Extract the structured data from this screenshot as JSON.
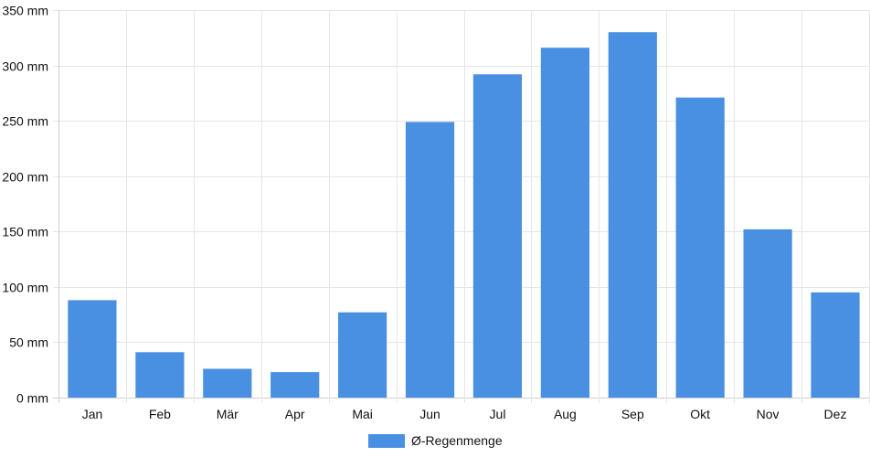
{
  "chart_data": {
    "type": "bar",
    "categories": [
      "Jan",
      "Feb",
      "Mär",
      "Apr",
      "Mai",
      "Jun",
      "Jul",
      "Aug",
      "Sep",
      "Okt",
      "Nov",
      "Dez"
    ],
    "series": [
      {
        "name": "Ø-Regenmenge",
        "color": "#4a90e2",
        "values": [
          88,
          41,
          26,
          23,
          77,
          249,
          292,
          316,
          330,
          271,
          152,
          95
        ]
      }
    ],
    "ylim": [
      0,
      350
    ],
    "yticks": [
      0,
      50,
      100,
      150,
      200,
      250,
      300,
      350
    ],
    "y_unit": "mm",
    "grid": true,
    "legend_position": "bottom-center"
  }
}
